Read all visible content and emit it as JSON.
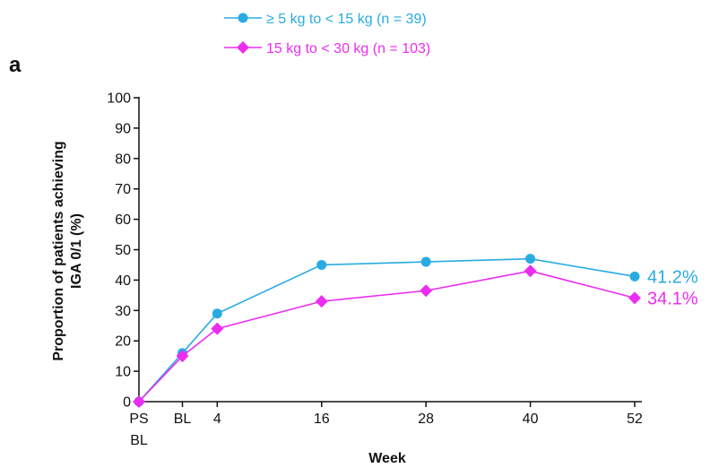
{
  "panel_label": "a",
  "chart_data": {
    "type": "line",
    "title": "",
    "xlabel": "Week",
    "ylabel_lines": [
      "Proportion of patients achieving",
      "IGA 0/1 (%)"
    ],
    "x_ticks": [
      {
        "value": -5,
        "lines": [
          "PS",
          "BL"
        ]
      },
      {
        "value": 0,
        "lines": [
          "BL"
        ]
      },
      {
        "value": 4,
        "lines": [
          "4"
        ]
      },
      {
        "value": 16,
        "lines": [
          "16"
        ]
      },
      {
        "value": 28,
        "lines": [
          "28"
        ]
      },
      {
        "value": 40,
        "lines": [
          "40"
        ]
      },
      {
        "value": 52,
        "lines": [
          "52"
        ]
      }
    ],
    "ylim": [
      0,
      100
    ],
    "y_ticks": [
      0,
      10,
      20,
      30,
      40,
      50,
      60,
      70,
      80,
      90,
      100
    ],
    "grid": false,
    "legend_position": "top",
    "series": [
      {
        "name": "≥ 5 kg to < 15 kg (n = 39)",
        "color": "#29abe2",
        "marker": "circle",
        "x": [
          -5,
          0,
          4,
          16,
          28,
          40,
          52
        ],
        "y": [
          0,
          16,
          29,
          45,
          46,
          47,
          41.2
        ],
        "end_label": "41.2%"
      },
      {
        "name": "15 kg to < 30 kg (n = 103)",
        "color": "#ec2df0",
        "marker": "diamond",
        "x": [
          -5,
          0,
          4,
          16,
          28,
          40,
          52
        ],
        "y": [
          0,
          15,
          24,
          33,
          36.5,
          43,
          34.1
        ],
        "end_label": "34.1%"
      }
    ]
  }
}
